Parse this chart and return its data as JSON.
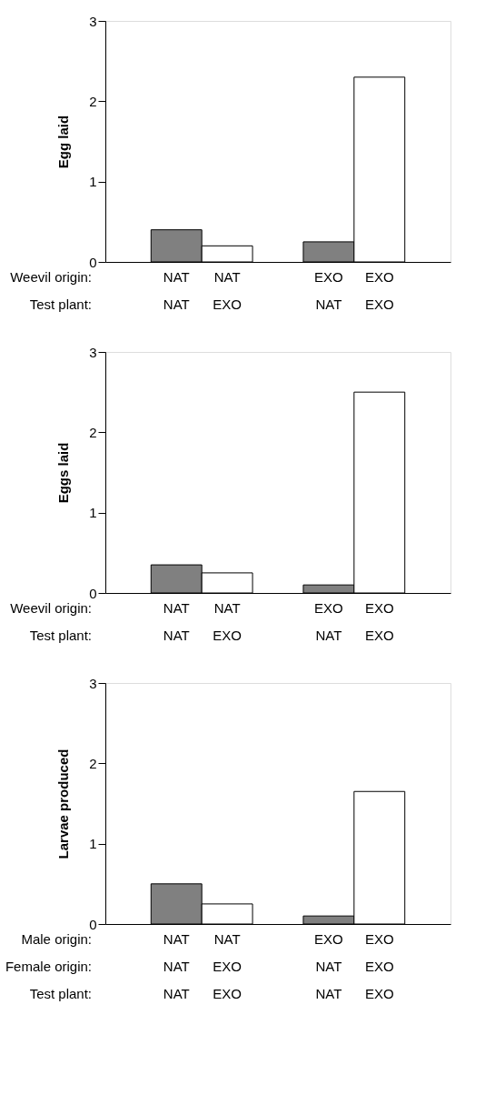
{
  "chart_data": [
    {
      "type": "bar",
      "ylabel": "Egg laid",
      "categories": [
        "NAT\nNAT",
        "NAT\nEXO",
        null,
        "EXO\nNAT",
        "EXO\nEXO"
      ],
      "values": [
        0.4,
        0.2,
        null,
        0.25,
        2.3
      ],
      "colors": [
        "#808080",
        "#ffffff",
        null,
        "#808080",
        "#ffffff"
      ],
      "ylim": [
        0,
        3
      ],
      "yticks": [
        0,
        1,
        2,
        3
      ],
      "grid": false,
      "annotations": [
        "Weevil origin:",
        "Test plant:"
      ]
    },
    {
      "type": "bar",
      "ylabel": "Eggs laid",
      "categories": [
        "NAT\nNAT",
        "NAT\nEXO",
        null,
        "EXO\nNAT",
        "EXO\nEXO"
      ],
      "values": [
        0.35,
        0.25,
        null,
        0.1,
        2.5
      ],
      "colors": [
        "#808080",
        "#ffffff",
        null,
        "#808080",
        "#ffffff"
      ],
      "ylim": [
        0,
        3
      ],
      "yticks": [
        0,
        1,
        2,
        3
      ],
      "grid": false,
      "annotations": [
        "Weevil origin:",
        "Test plant:"
      ]
    },
    {
      "type": "bar",
      "ylabel": "Larvae produced",
      "categories": [
        "NAT\nNAT\nNAT",
        "NAT\nEXO\nEXO",
        null,
        "EXO\nNAT\nNAT",
        "EXO\nEXO\nEXO"
      ],
      "values": [
        0.5,
        0.25,
        null,
        0.1,
        1.65
      ],
      "colors": [
        "#808080",
        "#ffffff",
        null,
        "#808080",
        "#ffffff"
      ],
      "ylim": [
        0,
        3
      ],
      "yticks": [
        0,
        1,
        2,
        3
      ],
      "grid": false,
      "annotations": [
        "Male origin:",
        "Female origin:",
        "Test plant:"
      ]
    }
  ]
}
